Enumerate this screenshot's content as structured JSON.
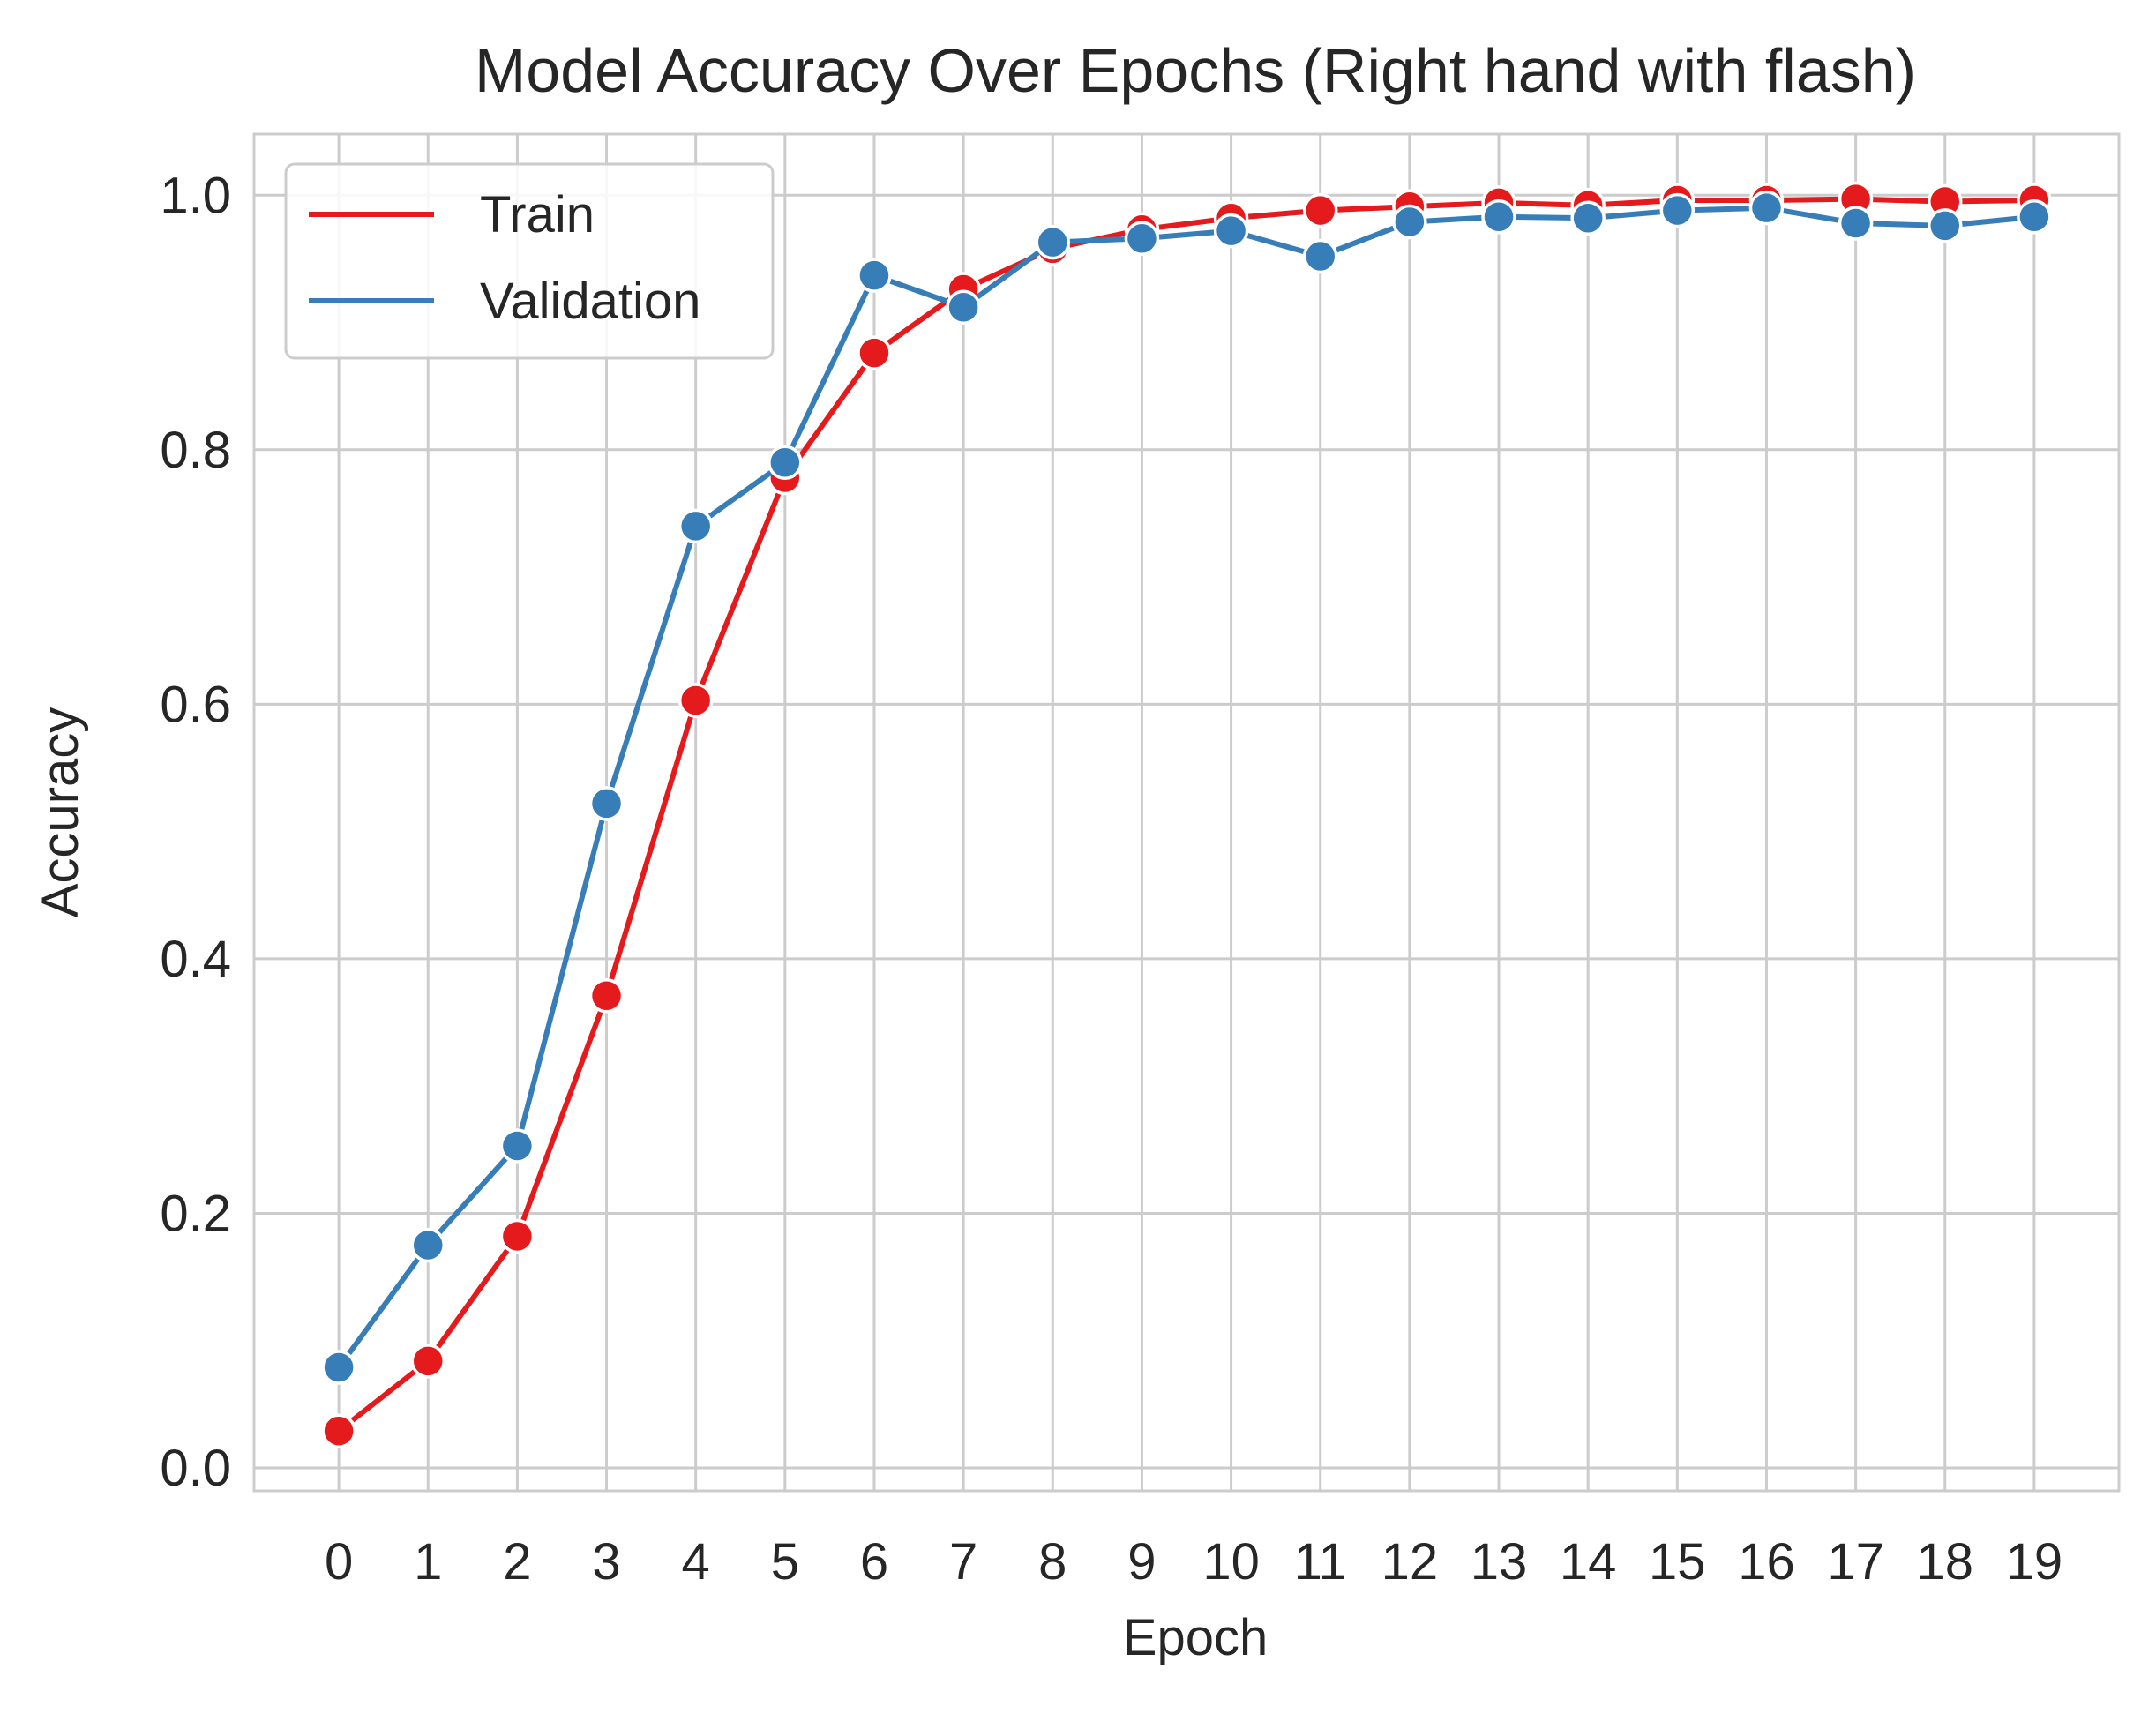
{
  "chart_data": {
    "type": "line",
    "title": "Model Accuracy Over Epochs (Right hand with flash)",
    "xlabel": "Epoch",
    "ylabel": "Accuracy",
    "x": [
      0,
      1,
      2,
      3,
      4,
      5,
      6,
      7,
      8,
      9,
      10,
      11,
      12,
      13,
      14,
      15,
      16,
      17,
      18,
      19
    ],
    "xlim": [
      -0.95,
      19.95
    ],
    "ylim": [
      -0.018,
      1.048
    ],
    "xticks": [
      "0",
      "1",
      "2",
      "3",
      "4",
      "5",
      "6",
      "7",
      "8",
      "9",
      "10",
      "11",
      "12",
      "13",
      "14",
      "15",
      "16",
      "17",
      "18",
      "19"
    ],
    "yticks": [
      0.0,
      0.2,
      0.4,
      0.6,
      0.8,
      1.0
    ],
    "ytick_labels": [
      "0.0",
      "0.2",
      "0.4",
      "0.6",
      "0.8",
      "1.0"
    ],
    "grid": true,
    "legend_position": "top-left",
    "series": [
      {
        "name": "Train",
        "color": "#e41a1c",
        "values": [
          0.029,
          0.084,
          0.182,
          0.371,
          0.603,
          0.778,
          0.876,
          0.926,
          0.958,
          0.973,
          0.982,
          0.988,
          0.991,
          0.994,
          0.992,
          0.996,
          0.996,
          0.997,
          0.995,
          0.996
        ]
      },
      {
        "name": "Validation",
        "color": "#377eb8",
        "values": [
          0.079,
          0.175,
          0.253,
          0.522,
          0.74,
          0.79,
          0.937,
          0.912,
          0.963,
          0.966,
          0.972,
          0.952,
          0.979,
          0.983,
          0.982,
          0.988,
          0.99,
          0.978,
          0.976,
          0.983
        ]
      }
    ]
  }
}
